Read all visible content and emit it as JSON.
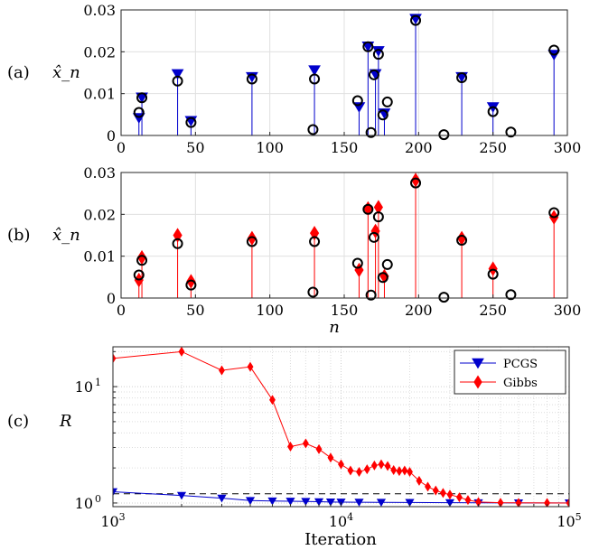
{
  "chart_data": [
    {
      "panel": "a",
      "type": "stem",
      "panel_label": "(a)",
      "ylabel": "x̂_n",
      "xlabel": "",
      "xlim": [
        0,
        300
      ],
      "ylim": [
        0,
        0.03
      ],
      "xticks": [
        0,
        50,
        100,
        150,
        200,
        250,
        300
      ],
      "yticks": [
        0,
        0.01,
        0.02,
        0.03
      ],
      "ytick_labels": [
        "0",
        "0.01",
        "0.02",
        "0.03"
      ],
      "grid": true,
      "marker": "triangle-down",
      "color": "#0000cc",
      "estimate": {
        "n": [
          12,
          14,
          38,
          47,
          88,
          130,
          160,
          166,
          171,
          173,
          177,
          198,
          229,
          250,
          291
        ],
        "values": [
          0.0042,
          0.0091,
          0.0147,
          0.0035,
          0.014,
          0.0156,
          0.0068,
          0.0213,
          0.0147,
          0.0202,
          0.0053,
          0.0279,
          0.014,
          0.0068,
          0.0193
        ]
      },
      "truth": {
        "n": [
          12,
          14,
          38,
          47,
          88,
          129,
          130,
          159,
          166,
          168,
          170,
          173,
          176,
          179,
          198,
          217,
          229,
          250,
          262,
          291
        ],
        "values": [
          0.0055,
          0.009,
          0.013,
          0.0031,
          0.0135,
          0.0014,
          0.0135,
          0.0083,
          0.0212,
          0.0007,
          0.0145,
          0.0194,
          0.0049,
          0.008,
          0.0275,
          0.0002,
          0.0138,
          0.0057,
          0.0008,
          0.0204
        ]
      }
    },
    {
      "panel": "b",
      "type": "stem",
      "panel_label": "(b)",
      "ylabel": "x̂_n",
      "xlabel": "n",
      "xlim": [
        0,
        300
      ],
      "ylim": [
        0,
        0.03
      ],
      "xticks": [
        0,
        50,
        100,
        150,
        200,
        250,
        300
      ],
      "yticks": [
        0,
        0.01,
        0.02,
        0.03
      ],
      "ytick_labels": [
        "0",
        "0.01",
        "0.02",
        "0.03"
      ],
      "grid": true,
      "marker": "diamond",
      "color": "#ff0000",
      "estimate": {
        "n": [
          12,
          14,
          38,
          47,
          88,
          130,
          160,
          166,
          171,
          173,
          177,
          198,
          229,
          250,
          291
        ],
        "values": [
          0.0043,
          0.0097,
          0.015,
          0.004,
          0.0143,
          0.0155,
          0.0067,
          0.0214,
          0.016,
          0.0217,
          0.0052,
          0.0282,
          0.0143,
          0.007,
          0.0193
        ]
      },
      "truth": {
        "n": [
          12,
          14,
          38,
          47,
          88,
          129,
          130,
          159,
          166,
          168,
          170,
          173,
          176,
          179,
          198,
          217,
          229,
          250,
          262,
          291
        ],
        "values": [
          0.0055,
          0.009,
          0.013,
          0.0031,
          0.0135,
          0.0014,
          0.0135,
          0.0083,
          0.0212,
          0.0007,
          0.0145,
          0.0194,
          0.0049,
          0.008,
          0.0275,
          0.0002,
          0.0138,
          0.0057,
          0.0008,
          0.0204
        ]
      }
    },
    {
      "panel": "c",
      "type": "line",
      "panel_label": "(c)",
      "ylabel": "R",
      "xlabel": "Iteration",
      "xscale": "log",
      "yscale": "log",
      "xlim": [
        1000,
        100000
      ],
      "ylim": [
        0.93,
        22
      ],
      "xticks": [
        1000,
        10000,
        100000
      ],
      "xtick_base": [
        "10",
        "10",
        "10"
      ],
      "xtick_exp": [
        "3",
        "4",
        "5"
      ],
      "yticks": [
        1,
        10
      ],
      "ytick_base": [
        "10",
        "10"
      ],
      "ytick_exp": [
        "0",
        "1"
      ],
      "grid": true,
      "threshold": 1.2,
      "legend": "top-right",
      "series": [
        {
          "name": "PCGS",
          "color": "#0000cc",
          "marker": "triangle-down",
          "x": [
            1000,
            2000,
            3000,
            4000,
            5000,
            6000,
            7000,
            8000,
            9000,
            10000,
            12000,
            15000,
            20000,
            30000,
            40000,
            60000,
            100000
          ],
          "y": [
            1.25,
            1.16,
            1.1,
            1.05,
            1.04,
            1.035,
            1.03,
            1.025,
            1.02,
            1.018,
            1.015,
            1.012,
            1.01,
            1.006,
            1.004,
            1.002,
            1.001
          ]
        },
        {
          "name": "Gibbs",
          "color": "#ff0000",
          "marker": "diamond",
          "x": [
            1000,
            2000,
            3000,
            4000,
            5000,
            6000,
            7000,
            8000,
            9000,
            10000,
            11000,
            12000,
            13000,
            14000,
            15000,
            16000,
            17000,
            18000,
            19000,
            20000,
            22000,
            24000,
            26000,
            28000,
            30000,
            33000,
            36000,
            40000,
            50000,
            60000,
            80000,
            100000
          ],
          "y": [
            17.5,
            20.0,
            13.8,
            14.8,
            7.7,
            3.05,
            3.25,
            2.9,
            2.45,
            2.15,
            1.9,
            1.85,
            1.95,
            2.1,
            2.15,
            2.08,
            1.92,
            1.88,
            1.9,
            1.85,
            1.55,
            1.38,
            1.28,
            1.22,
            1.18,
            1.12,
            1.06,
            1.02,
            1.005,
            1.003,
            1.001,
            1.0
          ]
        }
      ]
    }
  ]
}
